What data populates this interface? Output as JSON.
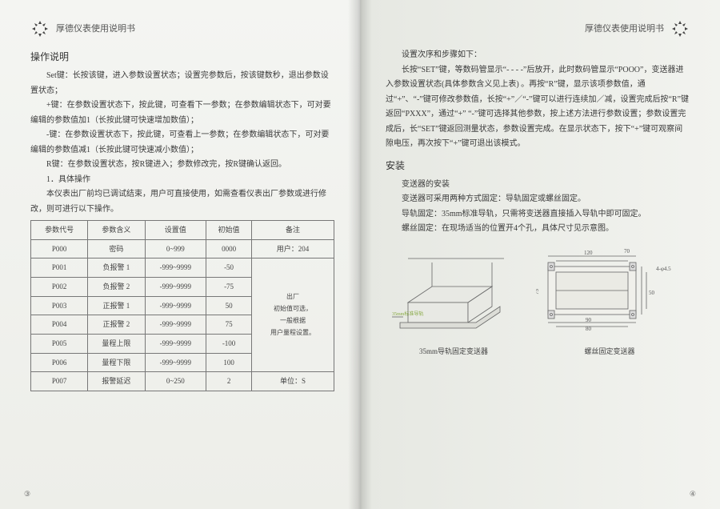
{
  "header": {
    "title": "厚德仪表使用说明书"
  },
  "left": {
    "heading1": "操作说明",
    "p1": "Set键：长按该键，进入参数设置状态；设置完参数后，按该键数秒，退出参数设置状态；",
    "p2": "+键：在参数设置状态下，按此键，可查看下一参数；在参数编辑状态下，可对要编辑的参数值加1（长按此键可快速增加数值）；",
    "p3": "-键：在参数设置状态下，按此键，可查看上一参数；在参数编辑状态下，可对要编辑的参数值减1（长按此键可快速减小数值）；",
    "p4": "R键：在参数设置状态，按R键进入；参数修改完，按R键确认返回。",
    "p5": "1．具体操作",
    "p6": "本仪表出厂前均已调试结束，用户可直接使用，如需查看仪表出厂参数或进行修改，则可进行以下操作。",
    "table": {
      "columns": [
        "参数代号",
        "参数含义",
        "设置值",
        "初始值",
        "备注"
      ],
      "rows": [
        [
          "P000",
          "密码",
          "0~999",
          "0000",
          "用户：204"
        ],
        [
          "P001",
          "负报警 1",
          "-999~9999",
          "-50",
          ""
        ],
        [
          "P002",
          "负报警 2",
          "-999~9999",
          "-75",
          ""
        ],
        [
          "P003",
          "正报警 1",
          "-999~9999",
          "50",
          ""
        ],
        [
          "P004",
          "正报警 2",
          "-999~9999",
          "75",
          ""
        ],
        [
          "P005",
          "量程上限",
          "-999~9999",
          "-100",
          ""
        ],
        [
          "P006",
          "量程下限",
          "-999~9999",
          "100",
          ""
        ],
        [
          "P007",
          "报警延迟",
          "0~250",
          "2",
          "单位：S"
        ]
      ],
      "merge_note": "出厂\n初始值可选，\n一般根据\n用户量程设置。"
    },
    "pagenum": "③"
  },
  "right": {
    "p1": "设置次序和步骤如下：",
    "p2": "长按“SET”键，等数码管显示“- - - -”后放开，此时数码管显示“POOO”，变送器进入参数设置状态(具体参数含义见上表) 。再按“R”键，显示该项参数值，通过“+”、“-”键可修改参数值，长按“+”／“-”键可以进行连续加／减，设置完成后按“R”键返回“PXXX”，通过“+” “-”键可选择其他参数，按上述方法进行参数设置；参数设置完成后，长“SET”键返回测量状态，参数设置完成。在显示状态下，按下“+”键可观察间隙电压，再次按下“+”键可退出该模式。",
    "heading2": "安装",
    "sub1": "变送器的安装",
    "p3": "变送器可采用两种方式固定：导轨固定或螺丝固定。",
    "p4": "导轨固定：35mm标准导轨，只需将变送器直接插入导轨中即可固定。",
    "p5": "螺丝固定：在现场适当的位置开4个孔，具体尺寸见示意图。",
    "diagrams": {
      "caption1": "35mm导轨固定变送器",
      "caption2": "螺丝固定变送器",
      "dims": {
        "w": "120",
        "h": "75",
        "d": "70",
        "base": "90",
        "inner": "80",
        "side": "50",
        "hole": "4-φ4.5",
        "rail": "35mm标准导轨"
      }
    },
    "pagenum": "④"
  }
}
